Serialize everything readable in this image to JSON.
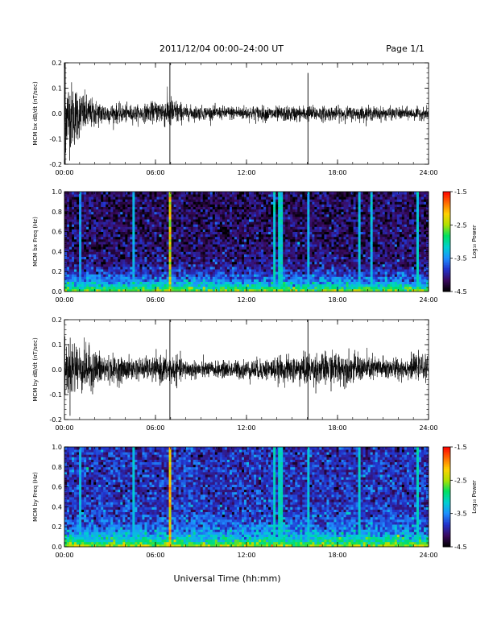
{
  "header": {
    "title": "2011/12/04  00:00–24:00 UT",
    "page": "Page 1/1"
  },
  "footer": {
    "xlabel": "Universal Time (hh:mm)"
  },
  "colors": {
    "background": "#ffffff",
    "trace": "#000000",
    "axis": "#000000",
    "colormap": [
      "#000000",
      "#3a0a5e",
      "#2233cc",
      "#1e90ff",
      "#00d0d0",
      "#00e060",
      "#b0e000",
      "#ffd000",
      "#ff6a00",
      "#ff0000"
    ]
  },
  "chart_data": [
    {
      "type": "line",
      "ylabel": "MCM bx dB/dt (nT/sec)",
      "x_unit": "hours UT",
      "xlim": [
        0,
        24
      ],
      "xticks": [
        "00:00",
        "06:00",
        "12:00",
        "18:00",
        "24:00"
      ],
      "ylim": [
        -0.2,
        0.2
      ],
      "yticks": [
        "-0.2",
        "-0.1",
        "0.0",
        "0.1",
        "0.2"
      ],
      "series": [
        {
          "x": [
            0,
            0.5,
            1,
            1.5,
            2,
            3,
            4,
            5,
            6,
            6.9,
            8,
            10,
            12,
            14,
            16,
            18,
            20,
            22,
            24
          ],
          "envelope_upper": [
            0.2,
            0.16,
            0.12,
            0.09,
            0.07,
            0.05,
            0.045,
            0.04,
            0.06,
            0.09,
            0.04,
            0.035,
            0.04,
            0.035,
            0.04,
            0.035,
            0.035,
            0.03,
            0.03
          ],
          "envelope_lower": [
            -0.2,
            -0.18,
            -0.12,
            -0.09,
            -0.07,
            -0.05,
            -0.045,
            -0.04,
            -0.045,
            -0.08,
            -0.035,
            -0.03,
            -0.035,
            -0.04,
            -0.04,
            -0.035,
            -0.035,
            -0.03,
            -0.03
          ]
        }
      ],
      "spikes": [
        {
          "x": 0.05,
          "y_max": 0.2,
          "y_min": -0.2
        },
        {
          "x": 6.95,
          "y_max": 0.2,
          "y_min": -0.2
        },
        {
          "x": 16.05,
          "y_max": 0.16,
          "y_min": -0.2
        }
      ]
    },
    {
      "type": "heatmap",
      "ylabel": "MCM bx Freq (Hz)",
      "x_unit": "hours UT",
      "xlim": [
        0,
        24
      ],
      "xticks": [
        "00:00",
        "06:00",
        "12:00",
        "18:00",
        "24:00"
      ],
      "ylim": [
        0,
        1.0
      ],
      "yticks": [
        "0.0",
        "0.2",
        "0.4",
        "0.6",
        "0.8",
        "1.0"
      ],
      "colorbar": {
        "label": "Log₁₀ Power",
        "range": [
          -4.5,
          -1.5
        ],
        "ticks": [
          "-1.5",
          "-2.5",
          "-3.5",
          "-4.5"
        ]
      },
      "vertical_bands": [
        {
          "x": 1.0,
          "power": -3.3
        },
        {
          "x": 4.5,
          "power": -3.2
        },
        {
          "x": 6.95,
          "power": -2.0
        },
        {
          "x": 13.8,
          "power": -3.0
        },
        {
          "x": 14.25,
          "power": -3.0
        },
        {
          "x": 16.05,
          "power": -3.2
        },
        {
          "x": 19.5,
          "power": -3.1
        },
        {
          "x": 20.2,
          "power": -3.1
        },
        {
          "x": 23.3,
          "power": -3.0
        }
      ],
      "description_values": {
        "low_freq_power": -2.5,
        "high_freq_power": -4.2
      }
    },
    {
      "type": "line",
      "ylabel": "MCM by dB/dt (nT/sec)",
      "x_unit": "hours UT",
      "xlim": [
        0,
        24
      ],
      "xticks": [
        "00:00",
        "06:00",
        "12:00",
        "18:00",
        "24:00"
      ],
      "ylim": [
        -0.2,
        0.2
      ],
      "yticks": [
        "-0.2",
        "-0.1",
        "0.0",
        "0.1",
        "0.2"
      ],
      "series": [
        {
          "x": [
            0,
            0.5,
            1,
            1.5,
            2,
            3,
            4,
            5,
            6,
            6.9,
            8,
            10,
            12,
            14,
            16,
            18,
            20,
            22,
            24
          ],
          "envelope_upper": [
            0.12,
            0.17,
            0.13,
            0.12,
            0.1,
            0.07,
            0.06,
            0.06,
            0.06,
            0.08,
            0.05,
            0.04,
            0.05,
            0.06,
            0.08,
            0.09,
            0.07,
            0.06,
            0.07
          ],
          "envelope_lower": [
            -0.12,
            -0.15,
            -0.12,
            -0.11,
            -0.09,
            -0.07,
            -0.06,
            -0.05,
            -0.06,
            -0.08,
            -0.05,
            -0.04,
            -0.05,
            -0.06,
            -0.08,
            -0.08,
            -0.06,
            -0.05,
            -0.05
          ]
        }
      ],
      "spikes": [
        {
          "x": 6.95,
          "y_max": 0.2,
          "y_min": -0.2
        },
        {
          "x": 16.05,
          "y_max": 0.2,
          "y_min": -0.2
        }
      ]
    },
    {
      "type": "heatmap",
      "ylabel": "MCM by Freq (Hz)",
      "x_unit": "hours UT",
      "xlim": [
        0,
        24
      ],
      "xticks": [
        "00:00",
        "06:00",
        "12:00",
        "18:00",
        "24:00"
      ],
      "ylim": [
        0,
        1.0
      ],
      "yticks": [
        "0.0",
        "0.2",
        "0.4",
        "0.6",
        "0.8",
        "1.0"
      ],
      "colorbar": {
        "label": "Log₁₀ Power",
        "range": [
          -4.5,
          -1.5
        ],
        "ticks": [
          "-1.5",
          "-2.5",
          "-3.5",
          "-4.5"
        ]
      },
      "vertical_bands": [
        {
          "x": 1.0,
          "power": -3.2
        },
        {
          "x": 4.5,
          "power": -3.1
        },
        {
          "x": 6.95,
          "power": -1.9
        },
        {
          "x": 13.8,
          "power": -3.0
        },
        {
          "x": 14.25,
          "power": -3.0
        },
        {
          "x": 16.05,
          "power": -3.1
        },
        {
          "x": 19.5,
          "power": -3.0
        },
        {
          "x": 23.3,
          "power": -3.0
        }
      ],
      "description_values": {
        "low_freq_power": -2.4,
        "high_freq_power": -3.9
      }
    }
  ]
}
